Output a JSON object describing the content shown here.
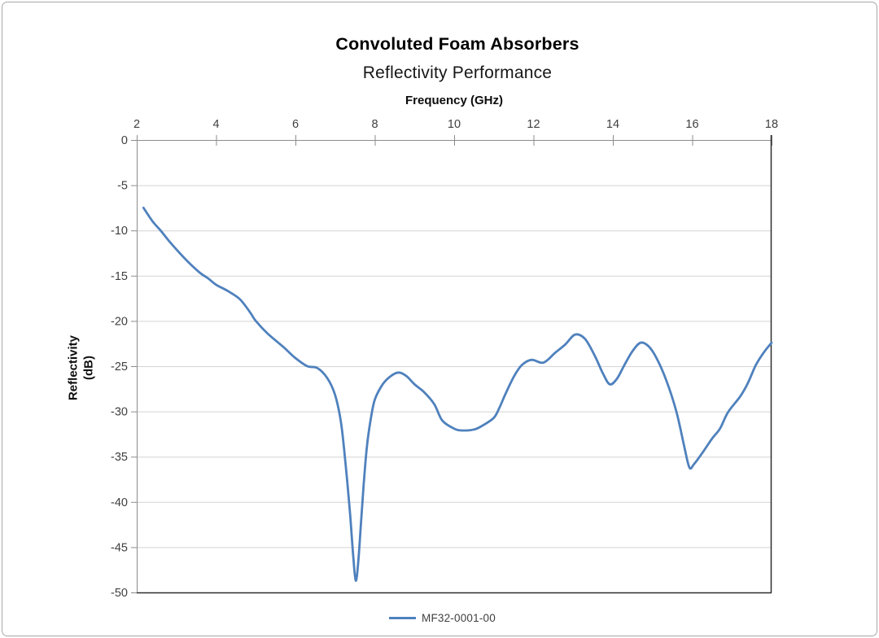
{
  "page": {
    "background": "#ffffff",
    "border_color": "#a8a8a8"
  },
  "chart_data": {
    "type": "line",
    "title": "Convoluted Foam Absorbers",
    "subtitle": "Reflectivity Performance",
    "xlabel": "Frequency (GHz)",
    "ylabel": "Reflectivity (dB)",
    "ylabel_lines": [
      "Reflectivity",
      "(dB)"
    ],
    "xlim": [
      2,
      18
    ],
    "ylim": [
      -50,
      0
    ],
    "x_ticks": [
      2,
      4,
      6,
      8,
      10,
      12,
      14,
      16,
      18
    ],
    "y_ticks": [
      0,
      -5,
      -10,
      -15,
      -20,
      -25,
      -30,
      -35,
      -40,
      -45,
      -50
    ],
    "grid": "horizontal-major",
    "legend_position": "bottom-center",
    "colors": {
      "gridline": "#d4d4d4",
      "axis": "#8c8c8c",
      "plot_border_dark": "#2e2e2e",
      "tick_label": "#3f3f3f"
    },
    "series": [
      {
        "name": "MF32-0001-00",
        "color": "#4F81BD",
        "points": [
          [
            2.17,
            -7.5
          ],
          [
            2.4,
            -9.0
          ],
          [
            2.6,
            -10.0
          ],
          [
            2.8,
            -11.1
          ],
          [
            3.0,
            -12.1
          ],
          [
            3.3,
            -13.5
          ],
          [
            3.6,
            -14.7
          ],
          [
            3.8,
            -15.3
          ],
          [
            4.0,
            -16.0
          ],
          [
            4.3,
            -16.7
          ],
          [
            4.6,
            -17.6
          ],
          [
            4.85,
            -19.0
          ],
          [
            5.0,
            -20.0
          ],
          [
            5.3,
            -21.4
          ],
          [
            5.7,
            -22.9
          ],
          [
            6.0,
            -24.1
          ],
          [
            6.3,
            -25.0
          ],
          [
            6.55,
            -25.2
          ],
          [
            6.8,
            -26.3
          ],
          [
            7.0,
            -28.2
          ],
          [
            7.15,
            -31.3
          ],
          [
            7.27,
            -36.1
          ],
          [
            7.38,
            -41.5
          ],
          [
            7.46,
            -46.2
          ],
          [
            7.52,
            -48.7
          ],
          [
            7.58,
            -46.8
          ],
          [
            7.65,
            -42.5
          ],
          [
            7.72,
            -38.1
          ],
          [
            7.8,
            -33.9
          ],
          [
            7.9,
            -30.8
          ],
          [
            8.0,
            -28.7
          ],
          [
            8.2,
            -27.0
          ],
          [
            8.4,
            -26.1
          ],
          [
            8.6,
            -25.7
          ],
          [
            8.8,
            -26.1
          ],
          [
            9.0,
            -27.0
          ],
          [
            9.25,
            -27.9
          ],
          [
            9.5,
            -29.2
          ],
          [
            9.7,
            -31.0
          ],
          [
            10.0,
            -31.9
          ],
          [
            10.2,
            -32.1
          ],
          [
            10.5,
            -32.0
          ],
          [
            10.7,
            -31.6
          ],
          [
            11.0,
            -30.7
          ],
          [
            11.15,
            -29.5
          ],
          [
            11.3,
            -28.0
          ],
          [
            11.5,
            -26.2
          ],
          [
            11.7,
            -24.9
          ],
          [
            11.95,
            -24.3
          ],
          [
            12.25,
            -24.6
          ],
          [
            12.55,
            -23.5
          ],
          [
            12.8,
            -22.6
          ],
          [
            13.05,
            -21.5
          ],
          [
            13.3,
            -22.0
          ],
          [
            13.55,
            -23.9
          ],
          [
            13.75,
            -25.8
          ],
          [
            13.92,
            -27.0
          ],
          [
            14.1,
            -26.4
          ],
          [
            14.3,
            -24.8
          ],
          [
            14.5,
            -23.3
          ],
          [
            14.7,
            -22.4
          ],
          [
            14.9,
            -22.8
          ],
          [
            15.1,
            -24.1
          ],
          [
            15.35,
            -26.6
          ],
          [
            15.6,
            -30.0
          ],
          [
            15.8,
            -33.9
          ],
          [
            15.93,
            -36.2
          ],
          [
            16.05,
            -35.8
          ],
          [
            16.3,
            -34.3
          ],
          [
            16.5,
            -33.0
          ],
          [
            16.7,
            -31.9
          ],
          [
            16.9,
            -30.1
          ],
          [
            17.2,
            -28.4
          ],
          [
            17.4,
            -26.9
          ],
          [
            17.6,
            -24.9
          ],
          [
            17.8,
            -23.5
          ],
          [
            18.0,
            -22.4
          ]
        ]
      }
    ]
  }
}
